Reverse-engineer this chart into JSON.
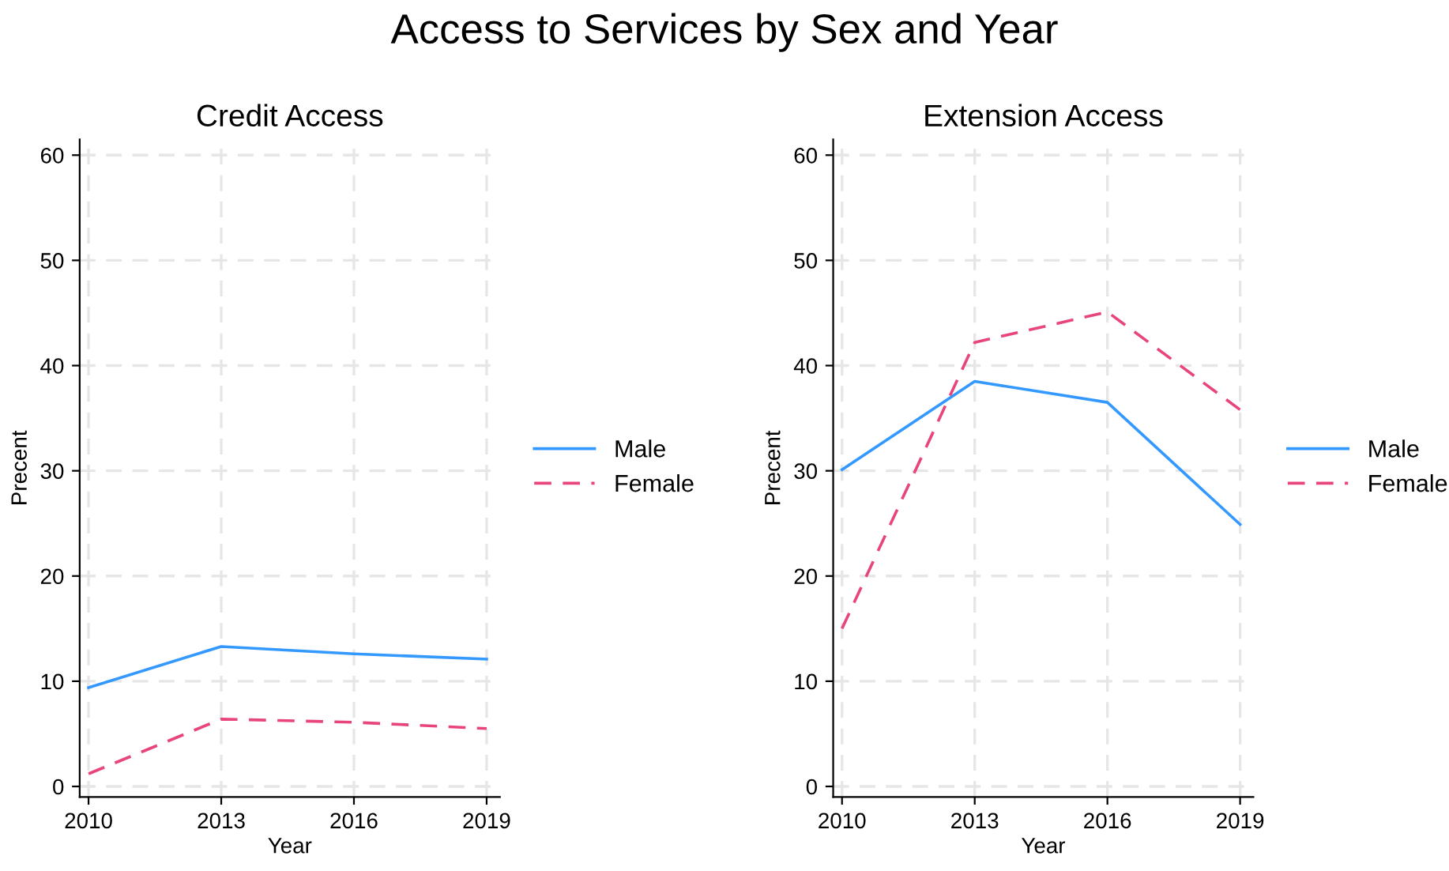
{
  "chart_data": [
    {
      "type": "line",
      "title": "Credit Access",
      "xlabel": "Year",
      "ylabel": "Precent",
      "annotations": [
        "Access to Services by Sex and Year"
      ],
      "x": [
        2010,
        2013,
        2016,
        2019
      ],
      "xlim": [
        2009.8,
        2019.3
      ],
      "xticks": [
        2010,
        2013,
        2016,
        2019
      ],
      "ylim": [
        -1,
        61.5
      ],
      "yticks": [
        0,
        10,
        20,
        30,
        40,
        50,
        60
      ],
      "grid": true,
      "legend": "right",
      "series": [
        {
          "name": "Male",
          "color": "#3399ff",
          "line_style": "solid",
          "values": [
            9.4,
            13.3,
            12.6,
            12.1
          ]
        },
        {
          "name": "Female",
          "color": "#e8457a",
          "line_style": "dashed",
          "values": [
            1.2,
            6.4,
            6.1,
            5.5
          ]
        }
      ]
    },
    {
      "type": "line",
      "title": "Extension Access",
      "xlabel": "Year",
      "ylabel": "Precent",
      "x": [
        2010,
        2013,
        2016,
        2019
      ],
      "xlim": [
        2009.8,
        2019.3
      ],
      "xticks": [
        2010,
        2013,
        2016,
        2019
      ],
      "ylim": [
        -1,
        61.5
      ],
      "yticks": [
        0,
        10,
        20,
        30,
        40,
        50,
        60
      ],
      "grid": true,
      "legend": "right",
      "series": [
        {
          "name": "Male",
          "color": "#3399ff",
          "line_style": "solid",
          "values": [
            30.1,
            38.5,
            36.5,
            24.9
          ]
        },
        {
          "name": "Female",
          "color": "#e8457a",
          "line_style": "dashed",
          "values": [
            15.0,
            42.2,
            45.1,
            35.8
          ]
        }
      ]
    }
  ]
}
